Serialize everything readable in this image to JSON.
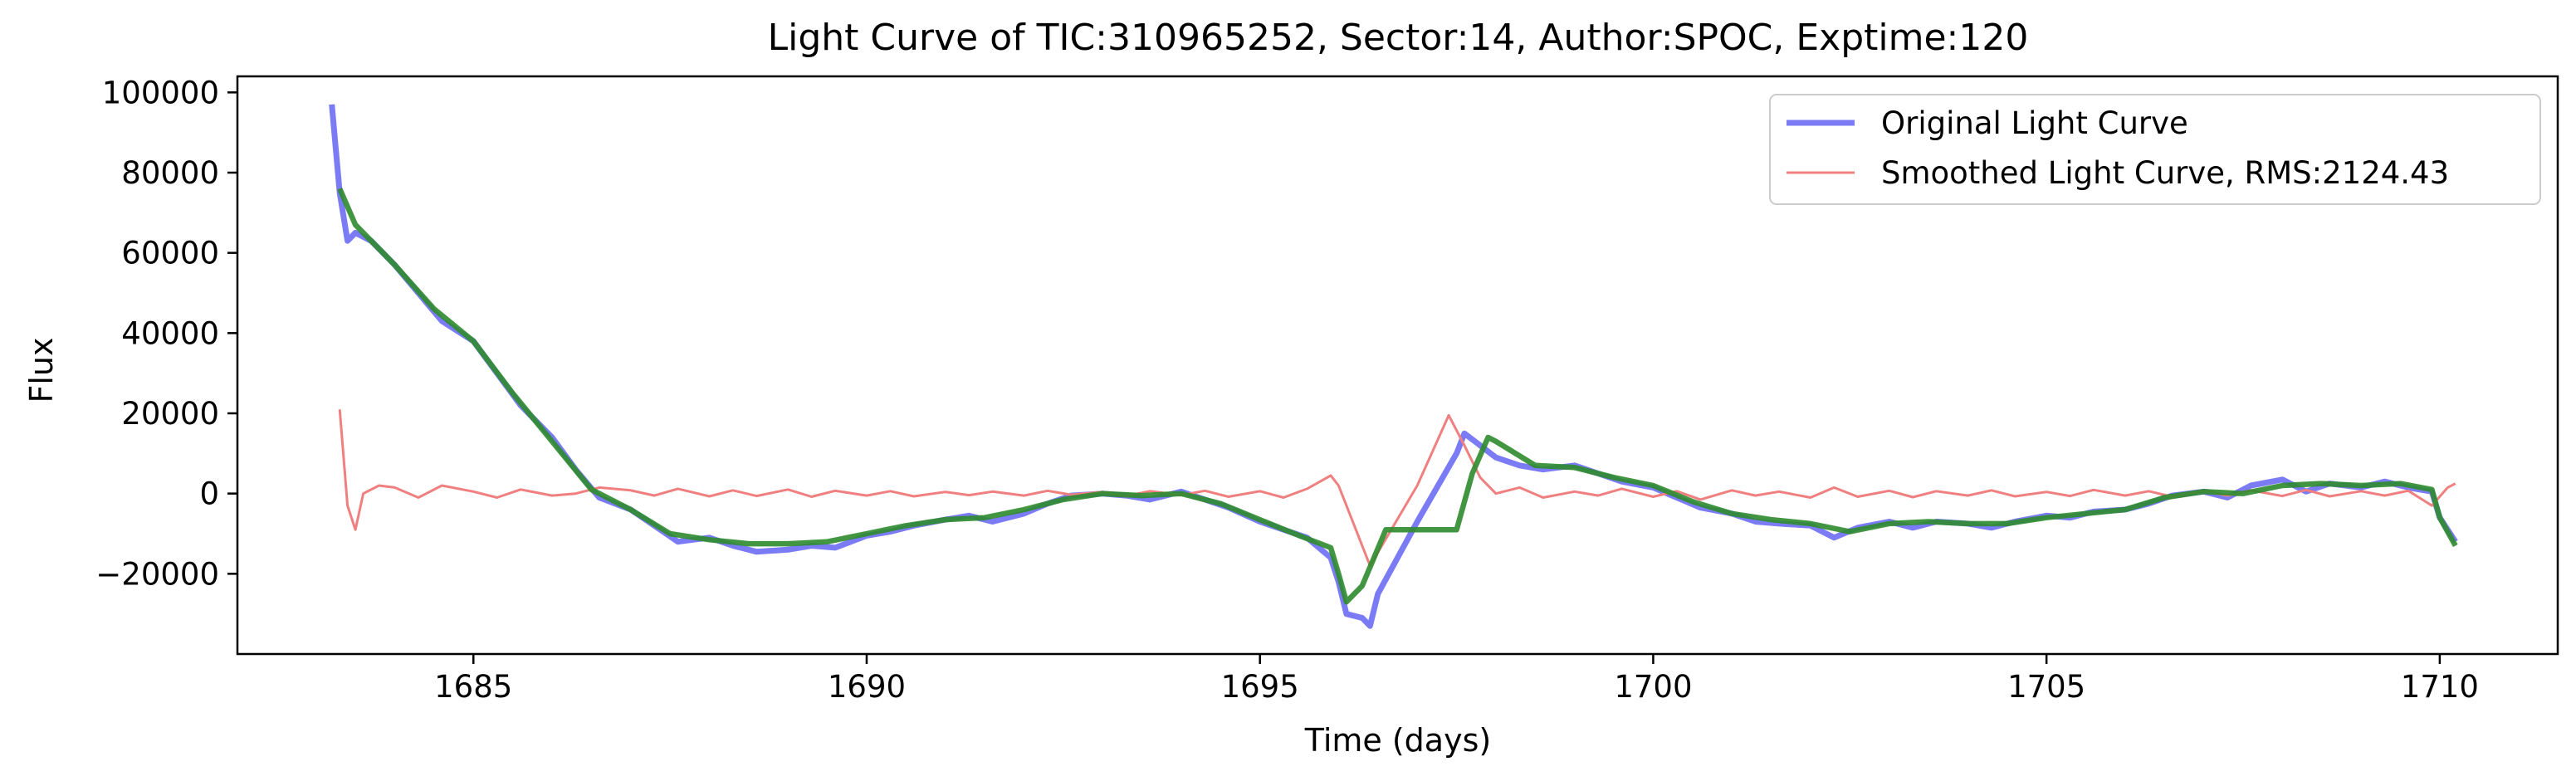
{
  "chart_data": {
    "type": "line",
    "title": "Light Curve of TIC:310965252, Sector:14, Author:SPOC, Exptime:120",
    "xlabel": "Time (days)",
    "ylabel": "Flux",
    "xlim": [
      1682,
      1711.5
    ],
    "ylim": [
      -40000,
      104000
    ],
    "xticks": [
      1685,
      1690,
      1695,
      1700,
      1705,
      1710
    ],
    "xtick_labels": [
      "1685",
      "1690",
      "1695",
      "1700",
      "1705",
      "1710"
    ],
    "yticks": [
      -20000,
      0,
      20000,
      40000,
      60000,
      80000,
      100000
    ],
    "ytick_labels": [
      "−20000",
      "0",
      "20000",
      "40000",
      "60000",
      "80000",
      "100000"
    ],
    "grid": false,
    "legend_position": "upper right",
    "series": [
      {
        "name": "Original Light Curve",
        "color": "#7b7bf5",
        "points": [
          [
            1683.2,
            97000
          ],
          [
            1683.3,
            75000
          ],
          [
            1683.4,
            63000
          ],
          [
            1683.5,
            65000
          ],
          [
            1683.7,
            63000
          ],
          [
            1684.0,
            57000
          ],
          [
            1684.3,
            50000
          ],
          [
            1684.6,
            43000
          ],
          [
            1685.0,
            38000
          ],
          [
            1685.3,
            30000
          ],
          [
            1685.6,
            22000
          ],
          [
            1686.0,
            14000
          ],
          [
            1686.3,
            6000
          ],
          [
            1686.6,
            -1000
          ],
          [
            1687.0,
            -4000
          ],
          [
            1687.3,
            -8000
          ],
          [
            1687.6,
            -12000
          ],
          [
            1688.0,
            -11000
          ],
          [
            1688.3,
            -13000
          ],
          [
            1688.6,
            -14500
          ],
          [
            1689.0,
            -14000
          ],
          [
            1689.3,
            -13000
          ],
          [
            1689.6,
            -13500
          ],
          [
            1690.0,
            -10500
          ],
          [
            1690.3,
            -9500
          ],
          [
            1690.6,
            -8000
          ],
          [
            1691.0,
            -6500
          ],
          [
            1691.3,
            -5500
          ],
          [
            1691.6,
            -7000
          ],
          [
            1692.0,
            -5000
          ],
          [
            1692.3,
            -2500
          ],
          [
            1692.6,
            -500
          ],
          [
            1693.0,
            0
          ],
          [
            1693.3,
            -500
          ],
          [
            1693.6,
            -1500
          ],
          [
            1694.0,
            500
          ],
          [
            1694.3,
            -1500
          ],
          [
            1694.6,
            -3500
          ],
          [
            1695.0,
            -7000
          ],
          [
            1695.3,
            -9000
          ],
          [
            1695.6,
            -11000
          ],
          [
            1695.9,
            -16000
          ],
          [
            1696.0,
            -22000
          ],
          [
            1696.1,
            -30000
          ],
          [
            1696.3,
            -31000
          ],
          [
            1696.4,
            -33000
          ],
          [
            1696.5,
            -25000
          ],
          [
            1697.0,
            -7000
          ],
          [
            1697.5,
            10000
          ],
          [
            1697.6,
            15000
          ],
          [
            1697.8,
            12000
          ],
          [
            1698.0,
            9000
          ],
          [
            1698.3,
            7000
          ],
          [
            1698.6,
            6000
          ],
          [
            1699.0,
            7000
          ],
          [
            1699.3,
            5000
          ],
          [
            1699.6,
            3000
          ],
          [
            1700.0,
            1500
          ],
          [
            1700.3,
            -1000
          ],
          [
            1700.6,
            -3500
          ],
          [
            1701.0,
            -5000
          ],
          [
            1701.3,
            -7000
          ],
          [
            1701.6,
            -7500
          ],
          [
            1702.0,
            -8000
          ],
          [
            1702.3,
            -11000
          ],
          [
            1702.6,
            -8500
          ],
          [
            1703.0,
            -7000
          ],
          [
            1703.3,
            -8500
          ],
          [
            1703.6,
            -7000
          ],
          [
            1704.0,
            -7500
          ],
          [
            1704.3,
            -8500
          ],
          [
            1704.6,
            -7000
          ],
          [
            1705.0,
            -5500
          ],
          [
            1705.3,
            -6000
          ],
          [
            1705.6,
            -4500
          ],
          [
            1706.0,
            -4000
          ],
          [
            1706.3,
            -2500
          ],
          [
            1706.6,
            -500
          ],
          [
            1707.0,
            500
          ],
          [
            1707.3,
            -1000
          ],
          [
            1707.6,
            2000
          ],
          [
            1708.0,
            3500
          ],
          [
            1708.3,
            500
          ],
          [
            1708.6,
            2500
          ],
          [
            1709.0,
            1500
          ],
          [
            1709.3,
            3000
          ],
          [
            1709.6,
            1500
          ],
          [
            1709.9,
            500
          ],
          [
            1710.0,
            -6000
          ],
          [
            1710.2,
            -12000
          ]
        ]
      },
      {
        "name": "Smoothed Light Curve, RMS:2124.43",
        "color": "#f08080",
        "points": [
          [
            1683.3,
            21000
          ],
          [
            1683.4,
            -3000
          ],
          [
            1683.5,
            -9000
          ],
          [
            1683.6,
            0
          ],
          [
            1683.8,
            2000
          ],
          [
            1684.0,
            1500
          ],
          [
            1684.3,
            -1000
          ],
          [
            1684.6,
            2000
          ],
          [
            1685.0,
            500
          ],
          [
            1685.3,
            -1000
          ],
          [
            1685.6,
            1000
          ],
          [
            1686.0,
            -500
          ],
          [
            1686.3,
            0
          ],
          [
            1686.6,
            1500
          ],
          [
            1687.0,
            800
          ],
          [
            1687.3,
            -500
          ],
          [
            1687.6,
            1200
          ],
          [
            1688.0,
            -700
          ],
          [
            1688.3,
            800
          ],
          [
            1688.6,
            -600
          ],
          [
            1689.0,
            1000
          ],
          [
            1689.3,
            -800
          ],
          [
            1689.6,
            700
          ],
          [
            1690.0,
            -500
          ],
          [
            1690.3,
            600
          ],
          [
            1690.6,
            -700
          ],
          [
            1691.0,
            400
          ],
          [
            1691.3,
            -400
          ],
          [
            1691.6,
            500
          ],
          [
            1692.0,
            -500
          ],
          [
            1692.3,
            700
          ],
          [
            1692.6,
            -300
          ],
          [
            1693.0,
            400
          ],
          [
            1693.3,
            -600
          ],
          [
            1693.6,
            600
          ],
          [
            1694.0,
            -400
          ],
          [
            1694.3,
            700
          ],
          [
            1694.6,
            -800
          ],
          [
            1695.0,
            600
          ],
          [
            1695.3,
            -1000
          ],
          [
            1695.6,
            1200
          ],
          [
            1695.9,
            4500
          ],
          [
            1696.0,
            2000
          ],
          [
            1696.2,
            -8000
          ],
          [
            1696.4,
            -18000
          ],
          [
            1697.0,
            2000
          ],
          [
            1697.4,
            19500
          ],
          [
            1697.6,
            12000
          ],
          [
            1697.8,
            4000
          ],
          [
            1698.0,
            0
          ],
          [
            1698.3,
            1500
          ],
          [
            1698.6,
            -1000
          ],
          [
            1699.0,
            500
          ],
          [
            1699.3,
            -500
          ],
          [
            1699.6,
            1200
          ],
          [
            1700.0,
            -800
          ],
          [
            1700.3,
            600
          ],
          [
            1700.6,
            -1500
          ],
          [
            1701.0,
            800
          ],
          [
            1701.3,
            -500
          ],
          [
            1701.6,
            500
          ],
          [
            1702.0,
            -1000
          ],
          [
            1702.3,
            1500
          ],
          [
            1702.6,
            -800
          ],
          [
            1703.0,
            700
          ],
          [
            1703.3,
            -900
          ],
          [
            1703.6,
            600
          ],
          [
            1704.0,
            -500
          ],
          [
            1704.3,
            800
          ],
          [
            1704.6,
            -700
          ],
          [
            1705.0,
            400
          ],
          [
            1705.3,
            -600
          ],
          [
            1705.6,
            900
          ],
          [
            1706.0,
            -500
          ],
          [
            1706.3,
            600
          ],
          [
            1706.6,
            -800
          ],
          [
            1707.0,
            700
          ],
          [
            1707.3,
            -500
          ],
          [
            1707.6,
            800
          ],
          [
            1708.0,
            -600
          ],
          [
            1708.3,
            900
          ],
          [
            1708.6,
            -700
          ],
          [
            1709.0,
            600
          ],
          [
            1709.3,
            -500
          ],
          [
            1709.6,
            700
          ],
          [
            1709.9,
            -3000
          ],
          [
            1710.1,
            1500
          ],
          [
            1710.2,
            2500
          ]
        ]
      },
      {
        "name": "",
        "color": "#2e8b2e",
        "points": [
          [
            1683.3,
            76000
          ],
          [
            1683.5,
            67000
          ],
          [
            1684.0,
            57000
          ],
          [
            1684.5,
            46000
          ],
          [
            1685.0,
            38000
          ],
          [
            1685.5,
            25000
          ],
          [
            1686.0,
            13000
          ],
          [
            1686.5,
            1000
          ],
          [
            1687.0,
            -4000
          ],
          [
            1687.5,
            -10000
          ],
          [
            1688.0,
            -11500
          ],
          [
            1688.5,
            -12500
          ],
          [
            1689.0,
            -12500
          ],
          [
            1689.5,
            -12000
          ],
          [
            1690.0,
            -10000
          ],
          [
            1690.5,
            -8000
          ],
          [
            1691.0,
            -6500
          ],
          [
            1691.5,
            -6000
          ],
          [
            1692.0,
            -4000
          ],
          [
            1692.5,
            -1500
          ],
          [
            1693.0,
            0
          ],
          [
            1693.5,
            -500
          ],
          [
            1694.0,
            0
          ],
          [
            1694.5,
            -2500
          ],
          [
            1695.0,
            -6500
          ],
          [
            1695.5,
            -10500
          ],
          [
            1695.9,
            -13500
          ],
          [
            1696.0,
            -20000
          ],
          [
            1696.1,
            -27000
          ],
          [
            1696.3,
            -23000
          ],
          [
            1696.6,
            -9000
          ],
          [
            1697.5,
            -9000
          ],
          [
            1697.7,
            5000
          ],
          [
            1697.9,
            14000
          ],
          [
            1698.0,
            13000
          ],
          [
            1698.5,
            7000
          ],
          [
            1699.0,
            6500
          ],
          [
            1699.5,
            4000
          ],
          [
            1700.0,
            2000
          ],
          [
            1700.5,
            -2000
          ],
          [
            1701.0,
            -5000
          ],
          [
            1701.5,
            -6500
          ],
          [
            1702.0,
            -7500
          ],
          [
            1702.5,
            -9500
          ],
          [
            1703.0,
            -7500
          ],
          [
            1703.5,
            -7000
          ],
          [
            1704.0,
            -7500
          ],
          [
            1704.5,
            -7500
          ],
          [
            1705.0,
            -6000
          ],
          [
            1705.5,
            -5000
          ],
          [
            1706.0,
            -4000
          ],
          [
            1706.5,
            -1000
          ],
          [
            1707.0,
            500
          ],
          [
            1707.5,
            0
          ],
          [
            1708.0,
            2000
          ],
          [
            1708.5,
            2500
          ],
          [
            1709.0,
            2000
          ],
          [
            1709.5,
            2500
          ],
          [
            1709.9,
            1000
          ],
          [
            1710.0,
            -6000
          ],
          [
            1710.2,
            -13000
          ]
        ]
      }
    ]
  }
}
